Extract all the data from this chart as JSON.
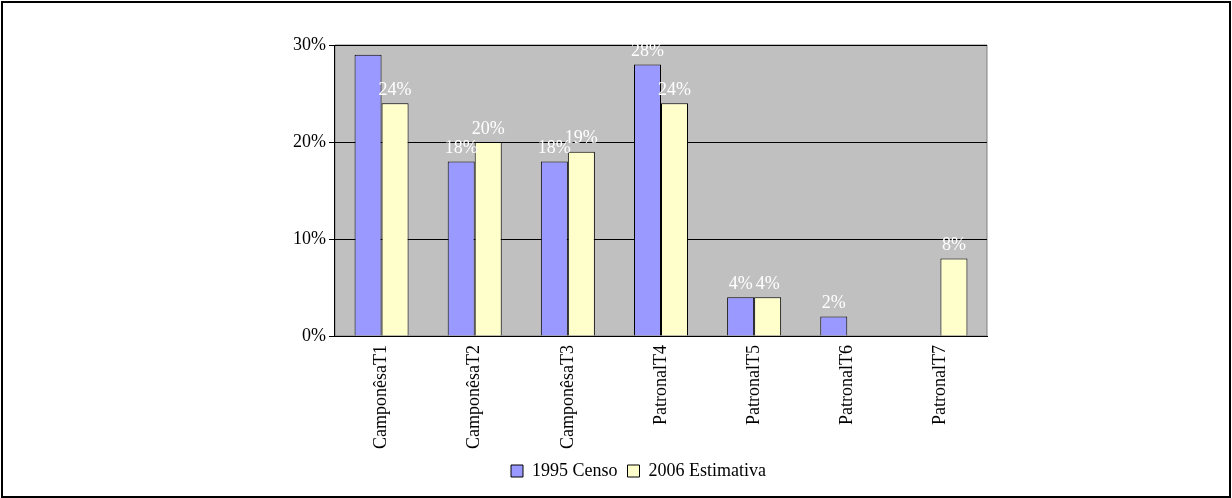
{
  "chart_data": {
    "type": "bar",
    "categories": [
      "CamponêsaT1",
      "CamponêsaT2",
      "CamponêsaT3",
      "PatronalT4",
      "PatronalT5",
      "PatronalT6",
      "PatronalT7"
    ],
    "series": [
      {
        "name": "1995 Censo",
        "color": "#9999ff",
        "values": [
          29,
          18,
          18,
          28,
          4,
          2,
          null
        ],
        "value_labels": [
          null,
          "18%",
          "18%",
          "28%",
          "4%",
          "2%",
          null
        ]
      },
      {
        "name": "2006 Estimativa",
        "color": "#ffffcc",
        "values": [
          24,
          20,
          19,
          24,
          4,
          null,
          8
        ],
        "value_labels": [
          "24%",
          "20%",
          "19%",
          "24%",
          "4%",
          null,
          "8%"
        ]
      }
    ],
    "ylim": [
      0,
      30
    ],
    "yticks": [
      {
        "value": 0,
        "label": "0%"
      },
      {
        "value": 10,
        "label": "10%"
      },
      {
        "value": 20,
        "label": "20%"
      },
      {
        "value": 30,
        "label": "30%"
      }
    ],
    "grid": "y",
    "legend": "bottom"
  }
}
